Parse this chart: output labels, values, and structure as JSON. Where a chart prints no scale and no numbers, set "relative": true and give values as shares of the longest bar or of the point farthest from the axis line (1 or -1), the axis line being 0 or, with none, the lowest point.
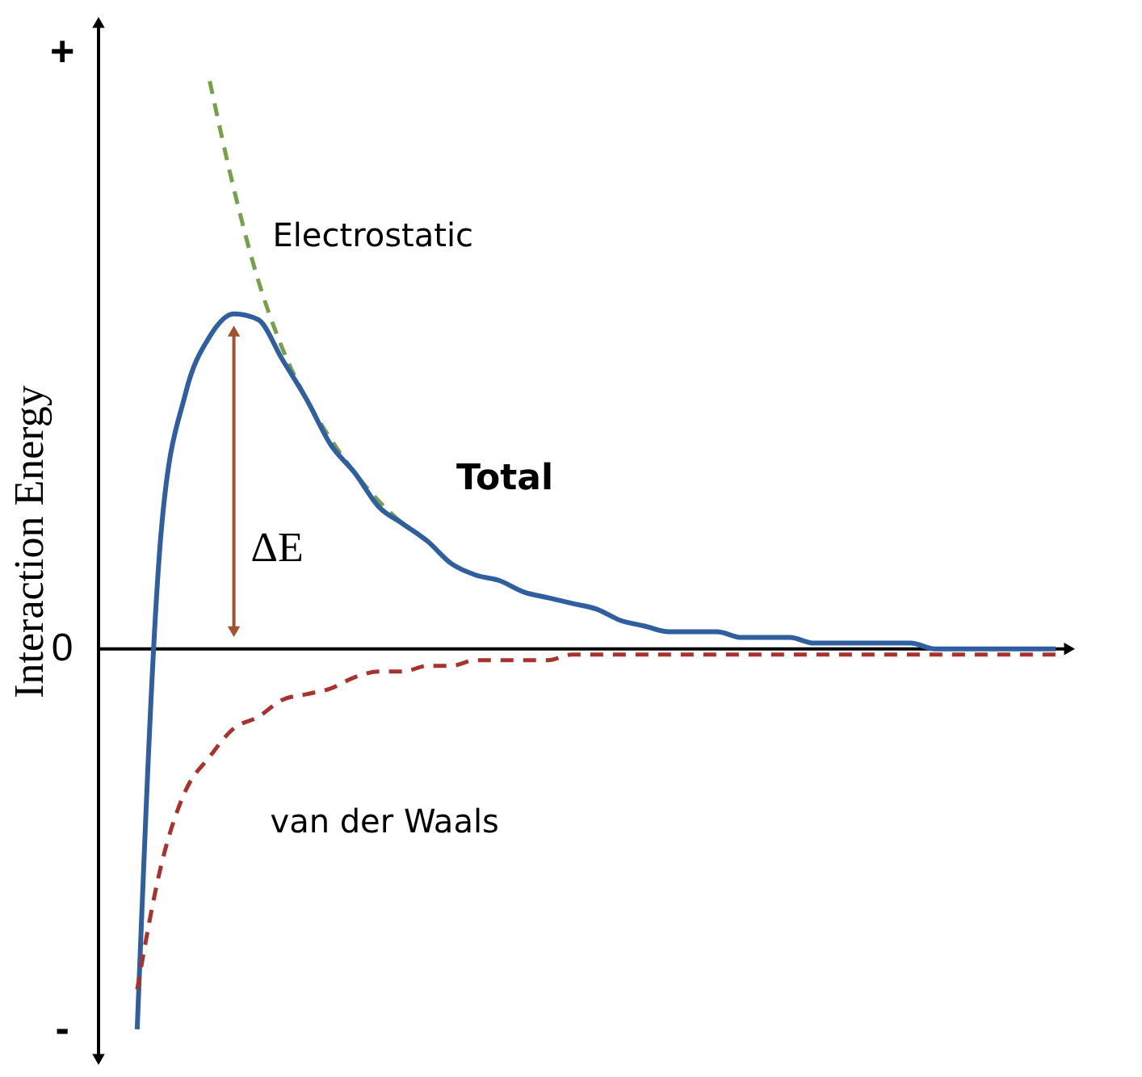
{
  "chart_data": {
    "type": "line",
    "relative": true,
    "ylabel": "Interaction Energy",
    "categories": [
      null,
      null,
      null,
      null,
      null,
      null,
      null,
      null,
      null,
      null,
      null,
      null,
      null,
      null,
      null,
      null,
      null,
      null,
      null,
      null,
      null,
      null,
      null,
      null,
      null,
      null,
      null,
      null,
      null,
      null,
      null,
      null,
      null,
      null,
      null,
      null,
      null,
      null,
      null
    ],
    "series": [
      {
        "name": "Electrostatic",
        "color": "#77a04a",
        "line_style": "dashed",
        "values": [
          null,
          null,
          null,
          1.0,
          0.81,
          0.65,
          0.53,
          0.44,
          0.37,
          0.31,
          0.26,
          0.22,
          null,
          null,
          null,
          null,
          null,
          null,
          null,
          null,
          null,
          null,
          null,
          null,
          null,
          null,
          null,
          null,
          null,
          null,
          null,
          null,
          null,
          null,
          null,
          null,
          null,
          null,
          null
        ]
      },
      {
        "name": "Total",
        "color": "#2f5f9e",
        "line_style": "solid",
        "values": [
          -0.67,
          0.21,
          0.45,
          0.55,
          0.59,
          0.58,
          0.51,
          0.44,
          0.36,
          0.31,
          0.25,
          0.22,
          0.19,
          0.15,
          0.13,
          0.12,
          0.1,
          0.09,
          0.08,
          0.07,
          0.05,
          0.04,
          0.03,
          0.03,
          0.03,
          0.02,
          0.02,
          0.02,
          0.01,
          0.01,
          0.01,
          0.01,
          0.01,
          0,
          0,
          0,
          0,
          0,
          0
        ]
      },
      {
        "name": "van der Waals",
        "color": "#a8322d",
        "line_style": "dashed",
        "values": [
          -0.6,
          -0.38,
          -0.25,
          -0.19,
          -0.14,
          -0.12,
          -0.09,
          -0.08,
          -0.07,
          -0.05,
          -0.04,
          -0.04,
          -0.03,
          -0.03,
          -0.02,
          -0.02,
          -0.02,
          -0.02,
          -0.01,
          -0.01,
          -0.01,
          -0.01,
          -0.01,
          -0.01,
          -0.01,
          -0.01,
          -0.01,
          -0.01,
          -0.01,
          -0.01,
          -0.01,
          -0.01,
          -0.01,
          -0.01,
          -0.01,
          -0.01,
          -0.01,
          -0.01,
          -0.01
        ]
      }
    ],
    "annotations": [
      "+",
      "0",
      "-",
      "ΔE"
    ]
  }
}
